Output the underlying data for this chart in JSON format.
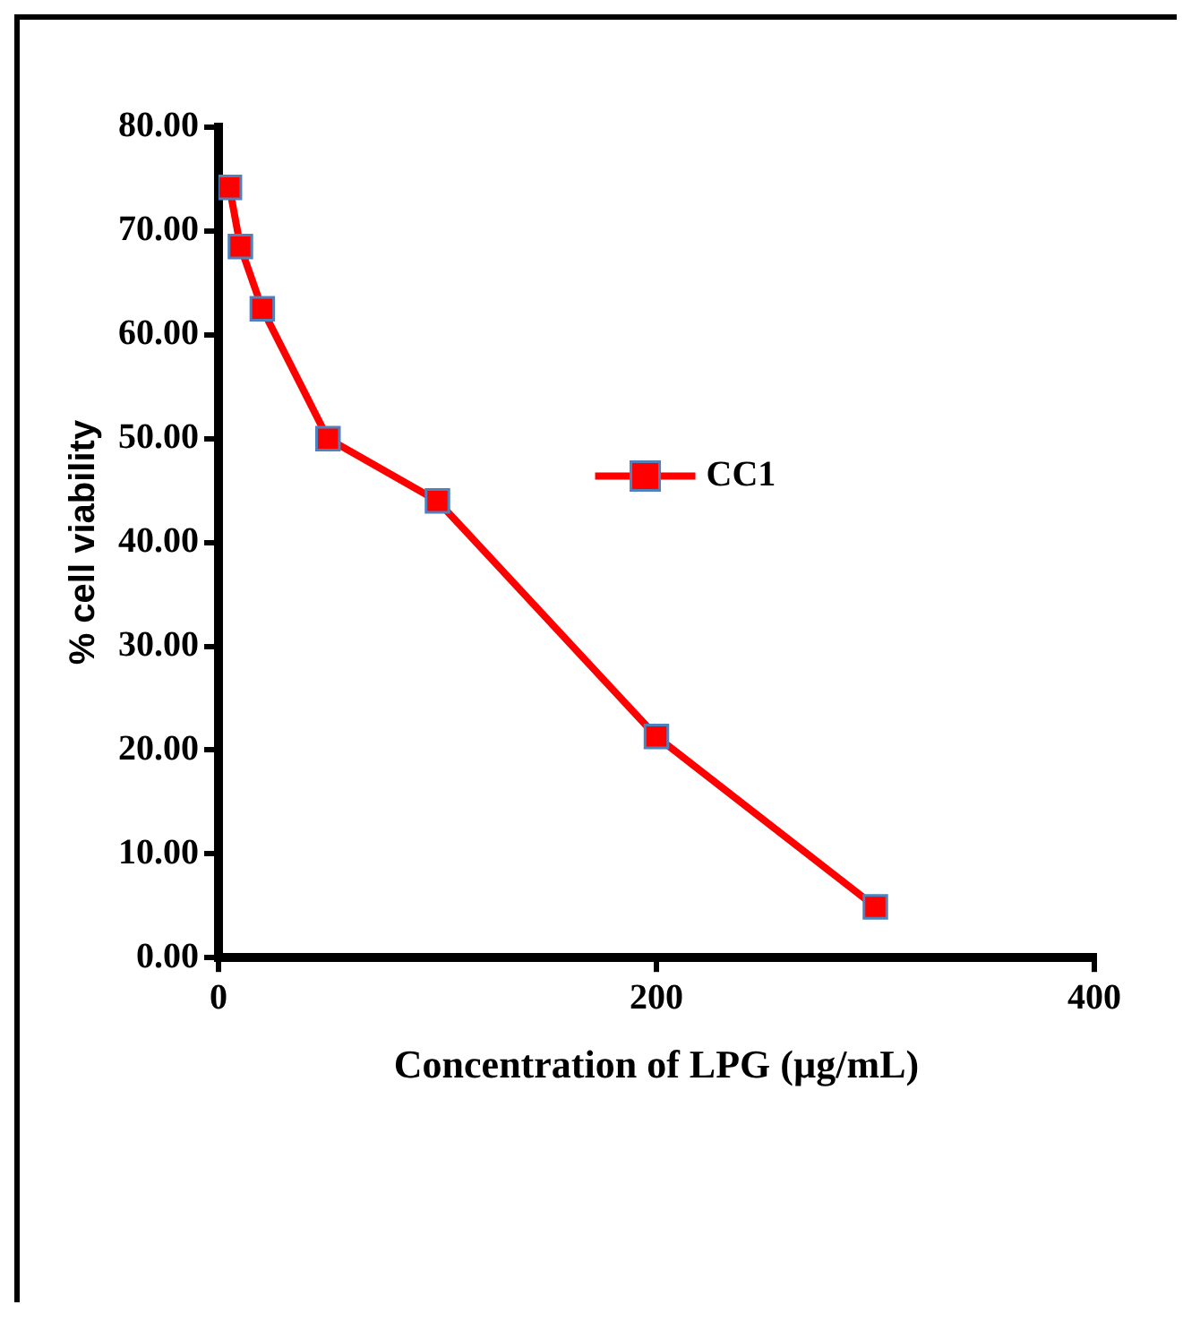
{
  "chart_data": {
    "type": "line",
    "xlabel": "Concentration of LPG (µg/mL)",
    "ylabel": "% cell viability",
    "x": [
      5,
      10,
      20,
      50,
      100,
      200,
      300
    ],
    "series": [
      {
        "name": "CC1",
        "color": "#ff0000",
        "values": [
          74.2,
          68.5,
          62.5,
          50.0,
          44.0,
          21.3,
          4.9
        ]
      }
    ],
    "xlim": [
      0,
      400
    ],
    "xticks": [
      0,
      200,
      400
    ],
    "ylim": [
      0,
      80
    ],
    "yticks": [
      {
        "value": 0,
        "label": "0.00"
      },
      {
        "value": 10,
        "label": "10.00"
      },
      {
        "value": 20,
        "label": "20.00"
      },
      {
        "value": 30,
        "label": "30.00"
      },
      {
        "value": 40,
        "label": "40.00"
      },
      {
        "value": 50,
        "label": "50.00"
      },
      {
        "value": 60,
        "label": "60.00"
      },
      {
        "value": 70,
        "label": "70.00"
      },
      {
        "value": 80,
        "label": "80.00"
      }
    ],
    "grid": false,
    "legend": "right",
    "marker": "square",
    "line_style": "solid"
  }
}
